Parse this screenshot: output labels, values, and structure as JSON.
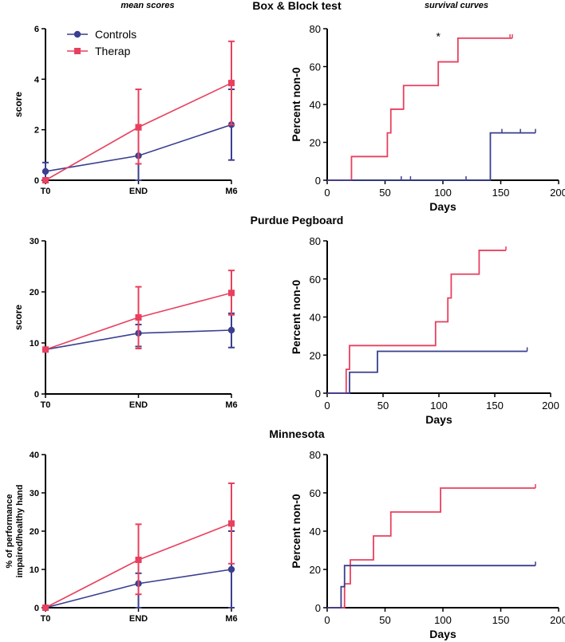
{
  "headers": {
    "left": "mean scores",
    "right": "survival curves"
  },
  "colors": {
    "controls": "#3a3f8f",
    "therap": "#e8405e",
    "axis": "#000000"
  },
  "chart_data": [
    {
      "id": "bbt_mean",
      "type": "line",
      "section_title": "Box & Block test",
      "categories": [
        "T0",
        "END",
        "M6"
      ],
      "ylabel": "score",
      "xlabel": "",
      "ylim": [
        0,
        6
      ],
      "yticks": [
        0,
        2,
        4,
        6
      ],
      "legend": [
        "Controls",
        "Therap"
      ],
      "legend_position": "top-left",
      "series": [
        {
          "name": "Controls",
          "values": [
            0.35,
            0.97,
            2.2
          ],
          "err_hi": [
            0.7,
            2.0,
            3.6
          ],
          "err_lo": [
            0,
            0,
            0.8
          ]
        },
        {
          "name": "Therap",
          "values": [
            0,
            2.1,
            3.85
          ],
          "err_hi": [
            0,
            3.6,
            5.5
          ],
          "err_lo": [
            0,
            0.65,
            2.2
          ]
        }
      ]
    },
    {
      "id": "bbt_surv",
      "type": "line",
      "subtype": "step",
      "xlabel": "Days",
      "ylabel": "Percent non-0",
      "xlim": [
        0,
        200
      ],
      "ylim": [
        0,
        80
      ],
      "xticks": [
        0,
        50,
        100,
        150,
        200
      ],
      "yticks": [
        0,
        20,
        40,
        60,
        80
      ],
      "annotation": "*",
      "annotation_at": [
        96,
        74
      ],
      "series": [
        {
          "name": "Therap",
          "steps": [
            [
              0,
              0
            ],
            [
              21,
              12.5
            ],
            [
              52,
              25
            ],
            [
              55,
              37.5
            ],
            [
              66,
              50
            ],
            [
              96,
              62.5
            ],
            [
              113,
              75
            ],
            [
              160,
              75
            ]
          ],
          "censor": [
            [
              158,
              75
            ],
            [
              160,
              75
            ]
          ]
        },
        {
          "name": "Controls",
          "steps": [
            [
              0,
              0
            ],
            [
              141,
              25
            ],
            [
              180,
              25
            ]
          ],
          "censor": [
            [
              64,
              0
            ],
            [
              72,
              0
            ],
            [
              120,
              0
            ],
            [
              151,
              25
            ],
            [
              167,
              25
            ],
            [
              180,
              25
            ]
          ]
        }
      ]
    },
    {
      "id": "pp_mean",
      "type": "line",
      "section_title": "Purdue Pegboard",
      "categories": [
        "T0",
        "END",
        "M6"
      ],
      "ylabel": "score",
      "xlabel": "",
      "ylim": [
        0,
        30
      ],
      "yticks": [
        0,
        10,
        20,
        30
      ],
      "series": [
        {
          "name": "Controls",
          "values": [
            8.7,
            11.9,
            12.5
          ],
          "err_hi": [
            8.7,
            13.6,
            15.8
          ],
          "err_lo": [
            8.7,
            9.3,
            9.1
          ]
        },
        {
          "name": "Therap",
          "values": [
            8.7,
            15.0,
            19.8
          ],
          "err_hi": [
            8.7,
            21.0,
            24.2
          ],
          "err_lo": [
            8.7,
            8.9,
            15.5
          ]
        }
      ]
    },
    {
      "id": "pp_surv",
      "type": "line",
      "subtype": "step",
      "xlabel": "Days",
      "ylabel": "Percent non-0",
      "xlim": [
        0,
        200
      ],
      "ylim": [
        0,
        80
      ],
      "xticks": [
        0,
        50,
        100,
        150,
        200
      ],
      "yticks": [
        0,
        20,
        40,
        60,
        80
      ],
      "series": [
        {
          "name": "Therap",
          "steps": [
            [
              0,
              0
            ],
            [
              17,
              12.5
            ],
            [
              20,
              25
            ],
            [
              97,
              37.5
            ],
            [
              108,
              50
            ],
            [
              111,
              62.5
            ],
            [
              136,
              75
            ],
            [
              160,
              75
            ]
          ],
          "censor": [
            [
              160,
              75
            ]
          ]
        },
        {
          "name": "Controls",
          "steps": [
            [
              0,
              0
            ],
            [
              20,
              11
            ],
            [
              45,
              22
            ],
            [
              179,
              22
            ]
          ],
          "censor": [
            [
              179,
              22
            ]
          ]
        }
      ]
    },
    {
      "id": "mn_mean",
      "type": "line",
      "section_title": "Minnesota",
      "categories": [
        "T0",
        "END",
        "M6"
      ],
      "ylabel": "% of performance impaired/healthy hand",
      "xlabel": "",
      "ylim": [
        0,
        40
      ],
      "yticks": [
        0,
        10,
        20,
        30,
        40
      ],
      "series": [
        {
          "name": "Controls",
          "values": [
            0,
            6.3,
            10.0
          ],
          "err_hi": [
            0,
            9.0,
            20.0
          ],
          "err_lo": [
            0,
            0,
            0
          ]
        },
        {
          "name": "Therap",
          "values": [
            0,
            12.5,
            22.0
          ],
          "err_hi": [
            0,
            21.8,
            32.5
          ],
          "err_lo": [
            0,
            3.5,
            11.5
          ]
        }
      ]
    },
    {
      "id": "mn_surv",
      "type": "line",
      "subtype": "step",
      "xlabel": "Days",
      "ylabel": "Percent non-0",
      "xlim": [
        0,
        200
      ],
      "ylim": [
        0,
        80
      ],
      "xticks": [
        0,
        50,
        100,
        150,
        200
      ],
      "yticks": [
        0,
        20,
        40,
        60,
        80
      ],
      "series": [
        {
          "name": "Therap",
          "steps": [
            [
              0,
              0
            ],
            [
              15,
              12.5
            ],
            [
              20,
              25
            ],
            [
              40,
              37.5
            ],
            [
              55,
              50
            ],
            [
              98,
              62.5
            ],
            [
              180,
              62.5
            ]
          ],
          "censor": [
            [
              180,
              62.5
            ]
          ]
        },
        {
          "name": "Controls",
          "steps": [
            [
              0,
              0
            ],
            [
              12,
              11
            ],
            [
              15,
              22
            ],
            [
              180,
              22
            ]
          ],
          "censor": [
            [
              180,
              22
            ]
          ]
        }
      ]
    }
  ]
}
